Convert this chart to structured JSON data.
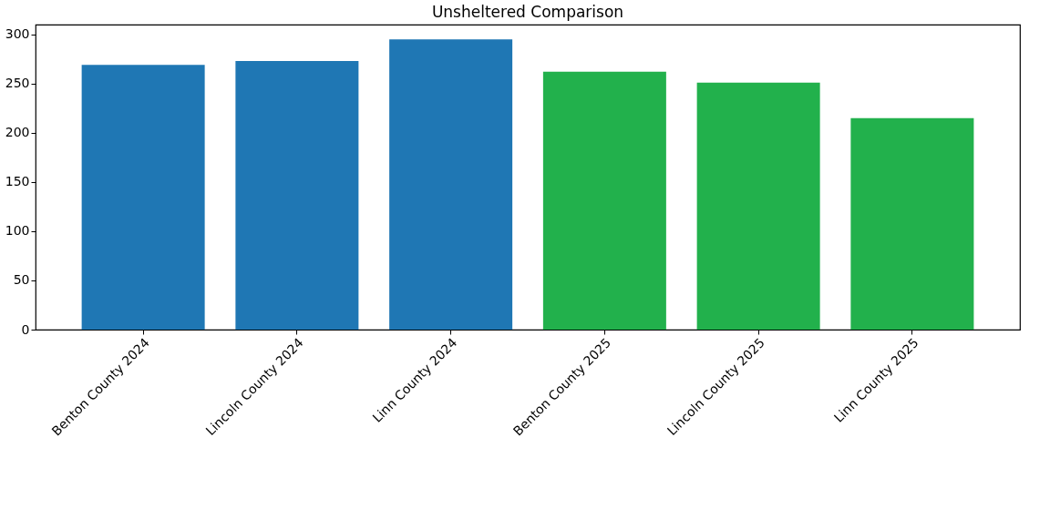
{
  "chart_data": {
    "type": "bar",
    "title": "Unsheltered Comparison",
    "categories": [
      "Benton County 2024",
      "Lincoln County 2024",
      "Linn County 2024",
      "Benton County 2025",
      "Lincoln County 2025",
      "Linn County 2025"
    ],
    "values": [
      269,
      273,
      295,
      262,
      251,
      215
    ],
    "colors": [
      "#1f77b4",
      "#1f77b4",
      "#1f77b4",
      "#22b14c",
      "#22b14c",
      "#22b14c"
    ],
    "ylim": [
      0,
      310
    ],
    "yticks": [
      0,
      50,
      100,
      150,
      200,
      250,
      300
    ],
    "grid": false
  }
}
